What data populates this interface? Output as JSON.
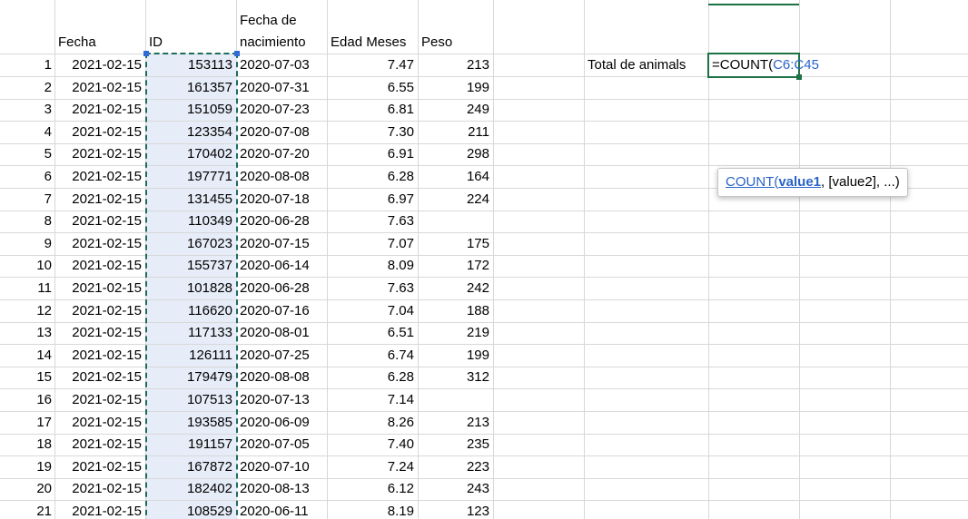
{
  "headers": {
    "fecha": "Fecha",
    "id": "ID",
    "nacimiento_line1": "Fecha de",
    "nacimiento_line2": "nacimiento",
    "edad": "Edad Meses",
    "peso": "Peso"
  },
  "rows": [
    {
      "n": "1",
      "fecha": "2021-02-15",
      "id": "153113",
      "nac": "2020-07-03",
      "edad": "7.47",
      "peso": "213"
    },
    {
      "n": "2",
      "fecha": "2021-02-15",
      "id": "161357",
      "nac": "2020-07-31",
      "edad": "6.55",
      "peso": "199"
    },
    {
      "n": "3",
      "fecha": "2021-02-15",
      "id": "151059",
      "nac": "2020-07-23",
      "edad": "6.81",
      "peso": "249"
    },
    {
      "n": "4",
      "fecha": "2021-02-15",
      "id": "123354",
      "nac": "2020-07-08",
      "edad": "7.30",
      "peso": "211"
    },
    {
      "n": "5",
      "fecha": "2021-02-15",
      "id": "170402",
      "nac": "2020-07-20",
      "edad": "6.91",
      "peso": "298"
    },
    {
      "n": "6",
      "fecha": "2021-02-15",
      "id": "197771",
      "nac": "2020-08-08",
      "edad": "6.28",
      "peso": "164"
    },
    {
      "n": "7",
      "fecha": "2021-02-15",
      "id": "131455",
      "nac": "2020-07-18",
      "edad": "6.97",
      "peso": "224"
    },
    {
      "n": "8",
      "fecha": "2021-02-15",
      "id": "110349",
      "nac": "2020-06-28",
      "edad": "7.63",
      "peso": ""
    },
    {
      "n": "9",
      "fecha": "2021-02-15",
      "id": "167023",
      "nac": "2020-07-15",
      "edad": "7.07",
      "peso": "175"
    },
    {
      "n": "10",
      "fecha": "2021-02-15",
      "id": "155737",
      "nac": "2020-06-14",
      "edad": "8.09",
      "peso": "172"
    },
    {
      "n": "11",
      "fecha": "2021-02-15",
      "id": "101828",
      "nac": "2020-06-28",
      "edad": "7.63",
      "peso": "242"
    },
    {
      "n": "12",
      "fecha": "2021-02-15",
      "id": "116620",
      "nac": "2020-07-16",
      "edad": "7.04",
      "peso": "188"
    },
    {
      "n": "13",
      "fecha": "2021-02-15",
      "id": "117133",
      "nac": "2020-08-01",
      "edad": "6.51",
      "peso": "219"
    },
    {
      "n": "14",
      "fecha": "2021-02-15",
      "id": "126111",
      "nac": "2020-07-25",
      "edad": "6.74",
      "peso": "199"
    },
    {
      "n": "15",
      "fecha": "2021-02-15",
      "id": "179479",
      "nac": "2020-08-08",
      "edad": "6.28",
      "peso": "312"
    },
    {
      "n": "16",
      "fecha": "2021-02-15",
      "id": "107513",
      "nac": "2020-07-13",
      "edad": "7.14",
      "peso": ""
    },
    {
      "n": "17",
      "fecha": "2021-02-15",
      "id": "193585",
      "nac": "2020-06-09",
      "edad": "8.26",
      "peso": "213"
    },
    {
      "n": "18",
      "fecha": "2021-02-15",
      "id": "191157",
      "nac": "2020-07-05",
      "edad": "7.40",
      "peso": "235"
    },
    {
      "n": "19",
      "fecha": "2021-02-15",
      "id": "167872",
      "nac": "2020-07-10",
      "edad": "7.24",
      "peso": "223"
    },
    {
      "n": "20",
      "fecha": "2021-02-15",
      "id": "182402",
      "nac": "2020-08-13",
      "edad": "6.12",
      "peso": "243"
    },
    {
      "n": "21",
      "fecha": "2021-02-15",
      "id": "108529",
      "nac": "2020-06-11",
      "edad": "8.19",
      "peso": "123"
    }
  ],
  "summary": {
    "label": "Total de animals",
    "formula_prefix": "=COUNT(",
    "formula_ref": "C6:C45"
  },
  "tooltip": {
    "fn": "COUNT",
    "open": "(",
    "arg1": "value1",
    "rest": ", [value2], ...)"
  },
  "colors": {
    "selection_fill": "#e6edf8",
    "marquee": "#1f6b5e",
    "active_cell_border": "#1e7145",
    "reference": "#2a63c9"
  }
}
